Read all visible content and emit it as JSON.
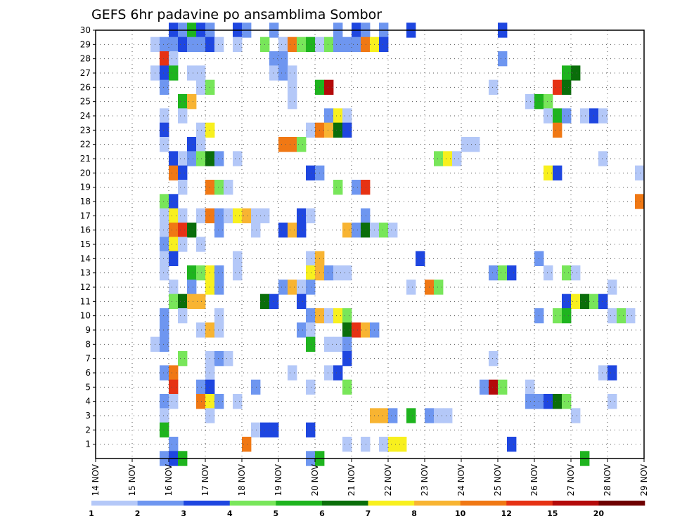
{
  "chart_data": {
    "type": "heatmap",
    "title": "GEFS 6hr padavine po ansamblima Sombor",
    "xlabel": "",
    "ylabel": "",
    "x_tick_labels": [
      "14 NOV",
      "15 NOV",
      "16 NOV",
      "17 NOV",
      "18 NOV",
      "19 NOV",
      "20 NOV",
      "21 NOV",
      "22 NOV",
      "23 NOV",
      "24 NOV",
      "25 NOV",
      "26 NOV",
      "27 NOV",
      "28 NOV",
      "29 NOV"
    ],
    "y_tick_labels": [
      "1",
      "2",
      "3",
      "4",
      "5",
      "6",
      "7",
      "8",
      "9",
      "10",
      "11",
      "12",
      "13",
      "14",
      "15",
      "16",
      "17",
      "18",
      "19",
      "20",
      "21",
      "22",
      "23",
      "24",
      "25",
      "26",
      "27",
      "28",
      "29",
      "30"
    ],
    "ylim": [
      0,
      30
    ],
    "x_step_hours": 6,
    "grid": true,
    "colorbar": {
      "levels": [
        "1",
        "2",
        "3",
        "4",
        "5",
        "6",
        "7",
        "8",
        "10",
        "12",
        "15",
        "20"
      ],
      "colors": [
        "#b4c8f8",
        "#6e96f0",
        "#1e46e0",
        "#78e65a",
        "#1eb41e",
        "#0a6e0a",
        "#f8f01e",
        "#f8b432",
        "#f07814",
        "#e63214",
        "#b40a0a",
        "#6e0000"
      ]
    },
    "cells": [
      {
        "y": 30,
        "x": [
          [
            8,
            2
          ],
          [
            9,
            1
          ],
          [
            10,
            4
          ],
          [
            11,
            2
          ],
          [
            12,
            1
          ],
          [
            15,
            2
          ],
          [
            16,
            1
          ],
          [
            19,
            1
          ],
          [
            26,
            1
          ],
          [
            28,
            2
          ],
          [
            29,
            1
          ],
          [
            31,
            1
          ],
          [
            34,
            2
          ],
          [
            44,
            2
          ]
        ]
      },
      {
        "y": 29,
        "x": [
          [
            6,
            0
          ],
          [
            7,
            1
          ],
          [
            8,
            1
          ],
          [
            9,
            2
          ],
          [
            10,
            1
          ],
          [
            11,
            1
          ],
          [
            12,
            2
          ],
          [
            13,
            0
          ],
          [
            15,
            0
          ],
          [
            18,
            3
          ],
          [
            20,
            0
          ],
          [
            21,
            8
          ],
          [
            22,
            3
          ],
          [
            23,
            4
          ],
          [
            24,
            0
          ],
          [
            25,
            3
          ],
          [
            26,
            1
          ],
          [
            27,
            1
          ],
          [
            28,
            1
          ],
          [
            29,
            8
          ],
          [
            30,
            6
          ],
          [
            31,
            2
          ]
        ]
      },
      {
        "y": 28,
        "x": [
          [
            7,
            9
          ],
          [
            8,
            0
          ],
          [
            19,
            1
          ],
          [
            20,
            1
          ],
          [
            44,
            1
          ]
        ]
      },
      {
        "y": 27,
        "x": [
          [
            6,
            0
          ],
          [
            7,
            2
          ],
          [
            8,
            4
          ],
          [
            10,
            0
          ],
          [
            11,
            0
          ],
          [
            19,
            0
          ],
          [
            20,
            1
          ],
          [
            21,
            0
          ],
          [
            51,
            4
          ],
          [
            52,
            5
          ]
        ]
      },
      {
        "y": 26,
        "x": [
          [
            7,
            1
          ],
          [
            11,
            0
          ],
          [
            12,
            3
          ],
          [
            21,
            0
          ],
          [
            24,
            4
          ],
          [
            25,
            10
          ],
          [
            43,
            0
          ],
          [
            50,
            9
          ],
          [
            51,
            5
          ]
        ]
      },
      {
        "y": 25,
        "x": [
          [
            9,
            4
          ],
          [
            10,
            7
          ],
          [
            21,
            0
          ],
          [
            47,
            0
          ],
          [
            48,
            4
          ],
          [
            49,
            3
          ]
        ]
      },
      {
        "y": 24,
        "x": [
          [
            7,
            0
          ],
          [
            9,
            0
          ],
          [
            25,
            1
          ],
          [
            26,
            6
          ],
          [
            27,
            0
          ],
          [
            49,
            0
          ],
          [
            50,
            4
          ],
          [
            51,
            1
          ],
          [
            53,
            0
          ],
          [
            54,
            2
          ],
          [
            55,
            0
          ]
        ]
      },
      {
        "y": 23,
        "x": [
          [
            7,
            2
          ],
          [
            11,
            0
          ],
          [
            12,
            6
          ],
          [
            23,
            0
          ],
          [
            24,
            8
          ],
          [
            25,
            7
          ],
          [
            26,
            5
          ],
          [
            27,
            2
          ],
          [
            50,
            8
          ]
        ]
      },
      {
        "y": 22,
        "x": [
          [
            7,
            0
          ],
          [
            10,
            2
          ],
          [
            11,
            0
          ],
          [
            20,
            8
          ],
          [
            21,
            8
          ],
          [
            22,
            3
          ],
          [
            40,
            0
          ],
          [
            41,
            0
          ]
        ]
      },
      {
        "y": 21,
        "x": [
          [
            8,
            2
          ],
          [
            9,
            0
          ],
          [
            10,
            1
          ],
          [
            11,
            3
          ],
          [
            12,
            5
          ],
          [
            13,
            1
          ],
          [
            15,
            0
          ],
          [
            37,
            3
          ],
          [
            38,
            6
          ],
          [
            39,
            0
          ],
          [
            55,
            0
          ]
        ]
      },
      {
        "y": 20,
        "x": [
          [
            8,
            8
          ],
          [
            9,
            2
          ],
          [
            23,
            2
          ],
          [
            24,
            1
          ],
          [
            49,
            6
          ],
          [
            50,
            2
          ],
          [
            59,
            0
          ]
        ]
      },
      {
        "y": 19,
        "x": [
          [
            9,
            0
          ],
          [
            12,
            8
          ],
          [
            13,
            3
          ],
          [
            14,
            0
          ],
          [
            26,
            3
          ],
          [
            28,
            1
          ],
          [
            29,
            9
          ]
        ]
      },
      {
        "y": 18,
        "x": [
          [
            7,
            3
          ],
          [
            8,
            2
          ],
          [
            59,
            8
          ]
        ]
      },
      {
        "y": 17,
        "x": [
          [
            7,
            0
          ],
          [
            8,
            6
          ],
          [
            9,
            0
          ],
          [
            11,
            0
          ],
          [
            12,
            8
          ],
          [
            13,
            1
          ],
          [
            14,
            0
          ],
          [
            15,
            6
          ],
          [
            16,
            7
          ],
          [
            17,
            0
          ],
          [
            18,
            0
          ],
          [
            22,
            2
          ],
          [
            23,
            0
          ],
          [
            29,
            1
          ]
        ]
      },
      {
        "y": 16,
        "x": [
          [
            7,
            0
          ],
          [
            8,
            8
          ],
          [
            9,
            9
          ],
          [
            10,
            5
          ],
          [
            13,
            1
          ],
          [
            17,
            0
          ],
          [
            20,
            2
          ],
          [
            21,
            7
          ],
          [
            22,
            2
          ],
          [
            27,
            7
          ],
          [
            28,
            1
          ],
          [
            29,
            5
          ],
          [
            30,
            0
          ],
          [
            31,
            3
          ],
          [
            32,
            0
          ]
        ]
      },
      {
        "y": 15,
        "x": [
          [
            7,
            1
          ],
          [
            8,
            6
          ],
          [
            9,
            0
          ],
          [
            11,
            0
          ]
        ]
      },
      {
        "y": 14,
        "x": [
          [
            7,
            0
          ],
          [
            8,
            2
          ],
          [
            15,
            0
          ],
          [
            23,
            0
          ],
          [
            24,
            7
          ],
          [
            35,
            2
          ],
          [
            48,
            1
          ]
        ]
      },
      {
        "y": 13,
        "x": [
          [
            7,
            0
          ],
          [
            10,
            4
          ],
          [
            11,
            3
          ],
          [
            12,
            6
          ],
          [
            13,
            1
          ],
          [
            15,
            0
          ],
          [
            23,
            6
          ],
          [
            24,
            7
          ],
          [
            25,
            1
          ],
          [
            26,
            0
          ],
          [
            27,
            0
          ],
          [
            43,
            1
          ],
          [
            44,
            3
          ],
          [
            45,
            2
          ],
          [
            49,
            0
          ],
          [
            51,
            3
          ],
          [
            52,
            0
          ]
        ]
      },
      {
        "y": 12,
        "x": [
          [
            8,
            0
          ],
          [
            10,
            1
          ],
          [
            12,
            6
          ],
          [
            13,
            1
          ],
          [
            20,
            1
          ],
          [
            21,
            7
          ],
          [
            22,
            0
          ],
          [
            23,
            1
          ],
          [
            34,
            0
          ],
          [
            36,
            8
          ],
          [
            37,
            3
          ],
          [
            56,
            0
          ]
        ]
      },
      {
        "y": 11,
        "x": [
          [
            8,
            3
          ],
          [
            9,
            5
          ],
          [
            10,
            7
          ],
          [
            11,
            7
          ],
          [
            18,
            5
          ],
          [
            19,
            2
          ],
          [
            22,
            2
          ],
          [
            51,
            2
          ],
          [
            52,
            6
          ],
          [
            53,
            5
          ],
          [
            54,
            3
          ],
          [
            55,
            2
          ]
        ]
      },
      {
        "y": 10,
        "x": [
          [
            7,
            1
          ],
          [
            9,
            0
          ],
          [
            13,
            0
          ],
          [
            23,
            1
          ],
          [
            24,
            7
          ],
          [
            25,
            0
          ],
          [
            26,
            6
          ],
          [
            27,
            3
          ],
          [
            48,
            1
          ],
          [
            50,
            3
          ],
          [
            51,
            4
          ],
          [
            56,
            0
          ],
          [
            57,
            3
          ],
          [
            58,
            0
          ]
        ]
      },
      {
        "y": 9,
        "x": [
          [
            7,
            1
          ],
          [
            11,
            0
          ],
          [
            12,
            7
          ],
          [
            13,
            0
          ],
          [
            22,
            1
          ],
          [
            23,
            0
          ],
          [
            27,
            5
          ],
          [
            28,
            9
          ],
          [
            29,
            7
          ],
          [
            30,
            1
          ]
        ]
      },
      {
        "y": 8,
        "x": [
          [
            6,
            0
          ],
          [
            7,
            1
          ],
          [
            23,
            4
          ],
          [
            25,
            0
          ],
          [
            26,
            0
          ],
          [
            27,
            1
          ]
        ]
      },
      {
        "y": 7,
        "x": [
          [
            9,
            3
          ],
          [
            12,
            0
          ],
          [
            13,
            1
          ],
          [
            14,
            0
          ],
          [
            27,
            2
          ],
          [
            43,
            0
          ]
        ]
      },
      {
        "y": 6,
        "x": [
          [
            7,
            1
          ],
          [
            8,
            8
          ],
          [
            12,
            0
          ],
          [
            21,
            0
          ],
          [
            25,
            0
          ],
          [
            26,
            2
          ],
          [
            55,
            0
          ],
          [
            56,
            2
          ]
        ]
      },
      {
        "y": 5,
        "x": [
          [
            8,
            9
          ],
          [
            11,
            1
          ],
          [
            12,
            2
          ],
          [
            17,
            1
          ],
          [
            23,
            0
          ],
          [
            27,
            3
          ],
          [
            42,
            1
          ],
          [
            43,
            10
          ],
          [
            44,
            3
          ],
          [
            47,
            0
          ]
        ]
      },
      {
        "y": 4,
        "x": [
          [
            7,
            1
          ],
          [
            8,
            0
          ],
          [
            11,
            8
          ],
          [
            12,
            6
          ],
          [
            13,
            1
          ],
          [
            15,
            0
          ],
          [
            47,
            1
          ],
          [
            48,
            1
          ],
          [
            49,
            2
          ],
          [
            50,
            5
          ],
          [
            51,
            3
          ],
          [
            56,
            0
          ]
        ]
      },
      {
        "y": 3,
        "x": [
          [
            7,
            0
          ],
          [
            12,
            0
          ],
          [
            30,
            7
          ],
          [
            31,
            7
          ],
          [
            32,
            1
          ],
          [
            34,
            4
          ],
          [
            36,
            1
          ],
          [
            37,
            0
          ],
          [
            38,
            0
          ],
          [
            52,
            0
          ]
        ]
      },
      {
        "y": 2,
        "x": [
          [
            7,
            4
          ],
          [
            17,
            0
          ],
          [
            18,
            2
          ],
          [
            19,
            2
          ],
          [
            23,
            2
          ]
        ]
      },
      {
        "y": 1,
        "x": [
          [
            8,
            1
          ],
          [
            16,
            8
          ],
          [
            27,
            0
          ],
          [
            29,
            0
          ],
          [
            31,
            0
          ],
          [
            32,
            6
          ],
          [
            33,
            6
          ],
          [
            45,
            2
          ]
        ]
      },
      {
        "y": 0,
        "x": [
          [
            7,
            1
          ],
          [
            8,
            2
          ],
          [
            9,
            4
          ],
          [
            23,
            1
          ],
          [
            24,
            4
          ],
          [
            53,
            4
          ]
        ]
      }
    ]
  }
}
